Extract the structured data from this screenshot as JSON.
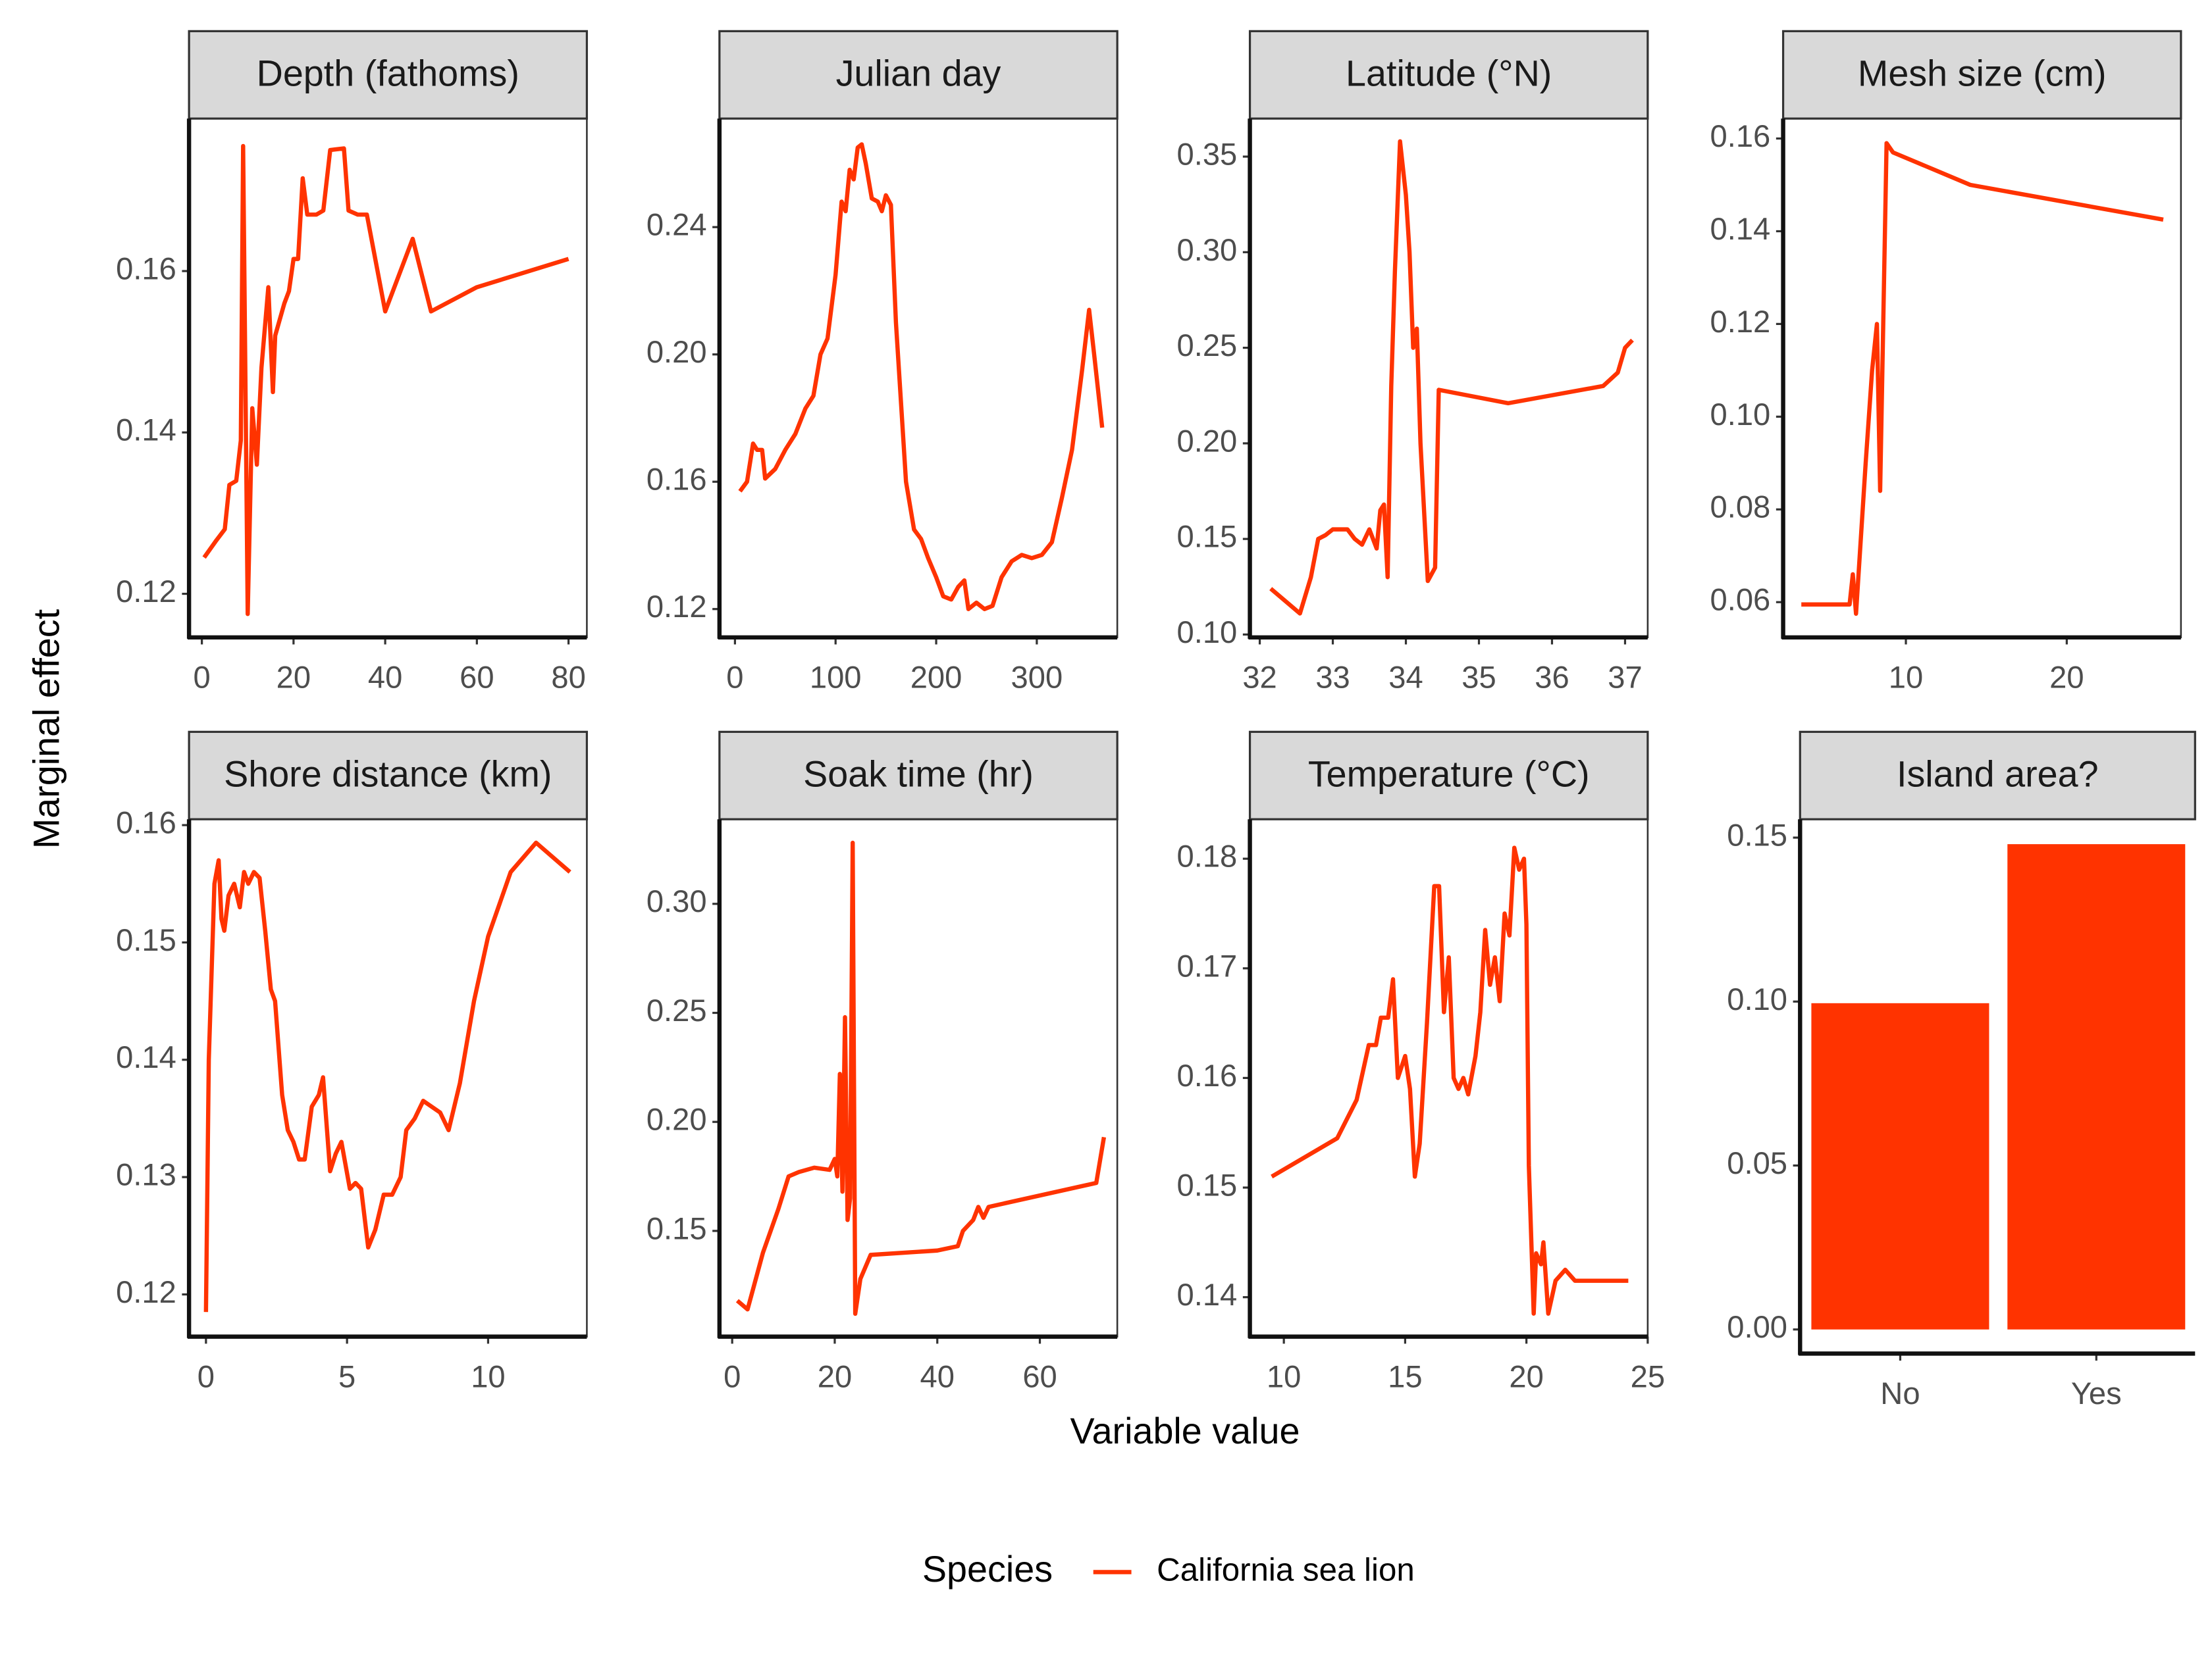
{
  "y_label": "Marginal effect",
  "x_label": "Variable value",
  "legend": {
    "title": "Species",
    "entries": [
      {
        "name": "California sea lion",
        "color": "#ff3300"
      }
    ]
  },
  "chart_data": [
    {
      "type": "line",
      "title": "Depth (fathoms)",
      "color": "#ff3300",
      "x": [
        0.5,
        3,
        5,
        6,
        7.5,
        8.5,
        9,
        10,
        11,
        12,
        13,
        14.5,
        15.5,
        16,
        18,
        19,
        20,
        21,
        22,
        23,
        25,
        26.5,
        28,
        31,
        32,
        34,
        36,
        40,
        46,
        50,
        60,
        80
      ],
      "values": [
        0.1245,
        0.1265,
        0.128,
        0.1335,
        0.134,
        0.139,
        0.1755,
        0.1175,
        0.143,
        0.136,
        0.148,
        0.158,
        0.145,
        0.152,
        0.156,
        0.1575,
        0.1615,
        0.1615,
        0.1715,
        0.167,
        0.167,
        0.1675,
        0.175,
        0.1752,
        0.1675,
        0.167,
        0.167,
        0.155,
        0.164,
        0.155,
        0.158,
        0.1615
      ],
      "xlim": [
        -2.8,
        84
      ],
      "xticks": [
        0,
        20,
        40,
        60,
        80
      ],
      "ylim": [
        0.1146,
        0.1789
      ],
      "yticks": [
        0.12,
        0.14,
        0.16
      ]
    },
    {
      "type": "line",
      "title": "Julian day",
      "color": "#ff3300",
      "x": [
        5,
        12,
        18,
        22,
        27,
        30,
        40,
        50,
        60,
        70,
        78,
        85,
        92,
        100,
        106,
        110,
        114,
        118,
        122,
        126,
        130,
        136,
        142,
        146,
        150,
        155,
        160,
        170,
        178,
        185,
        192,
        200,
        207,
        215,
        222,
        228,
        232,
        240,
        248,
        256,
        265,
        275,
        285,
        295,
        305,
        315,
        325,
        335,
        345,
        352,
        357,
        365
      ],
      "values": [
        0.157,
        0.16,
        0.172,
        0.17,
        0.17,
        0.161,
        0.164,
        0.17,
        0.175,
        0.183,
        0.187,
        0.2,
        0.205,
        0.225,
        0.248,
        0.245,
        0.258,
        0.255,
        0.265,
        0.266,
        0.26,
        0.249,
        0.248,
        0.245,
        0.25,
        0.247,
        0.21,
        0.16,
        0.145,
        0.142,
        0.136,
        0.13,
        0.124,
        0.123,
        0.127,
        0.129,
        0.12,
        0.122,
        0.12,
        0.121,
        0.13,
        0.135,
        0.137,
        0.136,
        0.137,
        0.141,
        0.155,
        0.17,
        0.195,
        0.214,
        0.2,
        0.177
      ],
      "xlim": [
        -15.4,
        380
      ],
      "xticks": [
        0,
        100,
        200,
        300
      ],
      "ylim": [
        0.1111,
        0.2741
      ],
      "yticks": [
        0.12,
        0.16,
        {
          "value": 0.2,
          "label": "0.20"
        },
        0.24
      ]
    },
    {
      "type": "line",
      "title": "Latitude (°N)",
      "color": "#ff3300",
      "x": [
        32.15,
        32.55,
        32.7,
        32.8,
        32.9,
        33.0,
        33.2,
        33.3,
        33.4,
        33.5,
        33.6,
        33.65,
        33.7,
        33.75,
        33.8,
        33.85,
        33.92,
        34.0,
        34.05,
        34.1,
        34.15,
        34.2,
        34.3,
        34.4,
        34.45,
        35.4,
        36.7,
        36.9,
        37.0,
        37.1
      ],
      "values": [
        0.124,
        0.111,
        0.13,
        0.15,
        0.152,
        0.155,
        0.155,
        0.15,
        0.147,
        0.155,
        0.145,
        0.165,
        0.168,
        0.13,
        0.23,
        0.29,
        0.358,
        0.33,
        0.3,
        0.25,
        0.26,
        0.2,
        0.128,
        0.135,
        0.228,
        0.221,
        0.23,
        0.237,
        0.25,
        0.254
      ],
      "xlim": [
        31.865,
        37.31
      ],
      "xticks": [
        32,
        33,
        34,
        35,
        36,
        37
      ],
      "ylim": [
        0.0985,
        0.3699
      ],
      "yticks": [
        {
          "value": 0.1,
          "label": "0.10"
        },
        0.15,
        {
          "value": 0.2,
          "label": "0.20"
        },
        0.25,
        {
          "value": 0.3,
          "label": "0.30"
        },
        0.35
      ]
    },
    {
      "type": "line",
      "title": "Mesh size (cm)",
      "color": "#ff3300",
      "x": [
        3.5,
        5,
        6.5,
        6.7,
        6.9,
        7.5,
        7.9,
        8.2,
        8.4,
        8.8,
        9.2,
        14,
        26
      ],
      "values": [
        0.0595,
        0.0595,
        0.0595,
        0.066,
        0.0575,
        0.09,
        0.11,
        0.12,
        0.084,
        0.159,
        0.157,
        0.15,
        0.1425
      ],
      "xlim": [
        2.37,
        27.1
      ],
      "xticks": [
        10,
        20
      ],
      "ylim": [
        0.0524,
        0.1643
      ],
      "yticks": [
        0.06,
        0.08,
        {
          "value": 0.1,
          "label": "0.10"
        },
        0.12,
        0.14,
        0.16
      ]
    },
    {
      "type": "line",
      "title": "Shore distance (km)",
      "color": "#ff3300",
      "x": [
        0,
        0.1,
        0.3,
        0.45,
        0.55,
        0.65,
        0.8,
        1.0,
        1.2,
        1.35,
        1.5,
        1.7,
        1.9,
        2.1,
        2.3,
        2.45,
        2.7,
        2.9,
        3.1,
        3.3,
        3.5,
        3.75,
        4.0,
        4.15,
        4.4,
        4.6,
        4.8,
        5.1,
        5.3,
        5.5,
        5.75,
        6.0,
        6.3,
        6.6,
        6.9,
        7.1,
        7.4,
        7.7,
        8.0,
        8.3,
        8.6,
        9.0,
        9.5,
        10,
        10.8,
        11.7,
        12.9
      ],
      "values": [
        0.1185,
        0.14,
        0.155,
        0.157,
        0.152,
        0.151,
        0.154,
        0.155,
        0.153,
        0.156,
        0.155,
        0.156,
        0.1555,
        0.151,
        0.146,
        0.145,
        0.137,
        0.134,
        0.133,
        0.1315,
        0.1315,
        0.136,
        0.137,
        0.1385,
        0.1305,
        0.132,
        0.133,
        0.129,
        0.1295,
        0.129,
        0.124,
        0.1255,
        0.1285,
        0.1285,
        0.13,
        0.134,
        0.135,
        0.1365,
        0.136,
        0.1355,
        0.134,
        0.138,
        0.145,
        0.1505,
        0.156,
        0.1585,
        0.156
      ],
      "xlim": [
        -0.6,
        13.5
      ],
      "xticks": [
        0,
        5,
        10
      ],
      "ylim": [
        0.1164,
        0.1605
      ],
      "yticks": [
        0.12,
        0.13,
        0.14,
        0.15,
        0.16
      ]
    },
    {
      "type": "line",
      "title": "Soak time (hr)",
      "color": "#ff3300",
      "x": [
        1,
        3,
        6,
        9,
        11,
        13,
        16,
        19,
        20,
        20.5,
        21,
        21.5,
        22,
        22.5,
        23,
        23.5,
        24,
        25,
        27,
        40,
        44,
        45,
        47,
        48,
        49,
        50,
        71,
        72.5
      ],
      "values": [
        0.118,
        0.114,
        0.14,
        0.16,
        0.175,
        0.177,
        0.179,
        0.178,
        0.183,
        0.175,
        0.222,
        0.168,
        0.248,
        0.155,
        0.165,
        0.328,
        0.112,
        0.128,
        0.139,
        0.141,
        0.143,
        0.15,
        0.155,
        0.161,
        0.156,
        0.161,
        0.172,
        0.193
      ],
      "xlim": [
        -2.48,
        75.1
      ],
      "xticks": [
        0,
        20,
        40,
        60
      ],
      "ylim": [
        0.1015,
        0.3388
      ],
      "yticks": [
        0.15,
        {
          "value": 0.2,
          "label": "0.20"
        },
        0.25,
        {
          "value": 0.3,
          "label": "0.30"
        }
      ]
    },
    {
      "type": "line",
      "title": "Temperature (°C)",
      "color": "#ff3300",
      "x": [
        9.5,
        12.2,
        13,
        13.5,
        13.8,
        14.0,
        14.3,
        14.5,
        14.7,
        15.0,
        15.2,
        15.4,
        15.6,
        15.9,
        16.2,
        16.4,
        16.6,
        16.8,
        17.0,
        17.2,
        17.4,
        17.6,
        17.9,
        18.1,
        18.3,
        18.5,
        18.7,
        18.9,
        19.1,
        19.3,
        19.5,
        19.7,
        19.9,
        20.0,
        20.1,
        20.3,
        20.4,
        20.6,
        20.7,
        20.9,
        21.2,
        21.6,
        22.0,
        24.2
      ],
      "values": [
        0.151,
        0.1545,
        0.158,
        0.163,
        0.163,
        0.1655,
        0.1655,
        0.169,
        0.16,
        0.162,
        0.159,
        0.151,
        0.154,
        0.165,
        0.1775,
        0.1775,
        0.166,
        0.171,
        0.16,
        0.159,
        0.16,
        0.1585,
        0.162,
        0.166,
        0.1735,
        0.1685,
        0.171,
        0.167,
        0.175,
        0.173,
        0.181,
        0.179,
        0.18,
        0.174,
        0.152,
        0.1385,
        0.144,
        0.143,
        0.145,
        0.1385,
        0.1415,
        0.1425,
        0.1415,
        0.1415
      ],
      "xlim": [
        8.6,
        25.0
      ],
      "xticks": [
        10,
        15,
        20,
        25
      ],
      "ylim": [
        0.1364,
        0.1836
      ],
      "yticks": [
        0.14,
        0.15,
        0.16,
        0.17,
        0.18
      ]
    },
    {
      "type": "bar",
      "title": "Island area?",
      "color": "#ff3300",
      "categories": [
        "No",
        "Yes"
      ],
      "values": [
        0.0995,
        0.148
      ],
      "ylim": [
        -0.00735,
        0.1556
      ],
      "yticks": [
        {
          "value": 0,
          "label": "0.00"
        },
        {
          "value": 0.05,
          "label": "0.05"
        },
        {
          "value": 0.1,
          "label": "0.10"
        },
        0.15
      ]
    }
  ]
}
